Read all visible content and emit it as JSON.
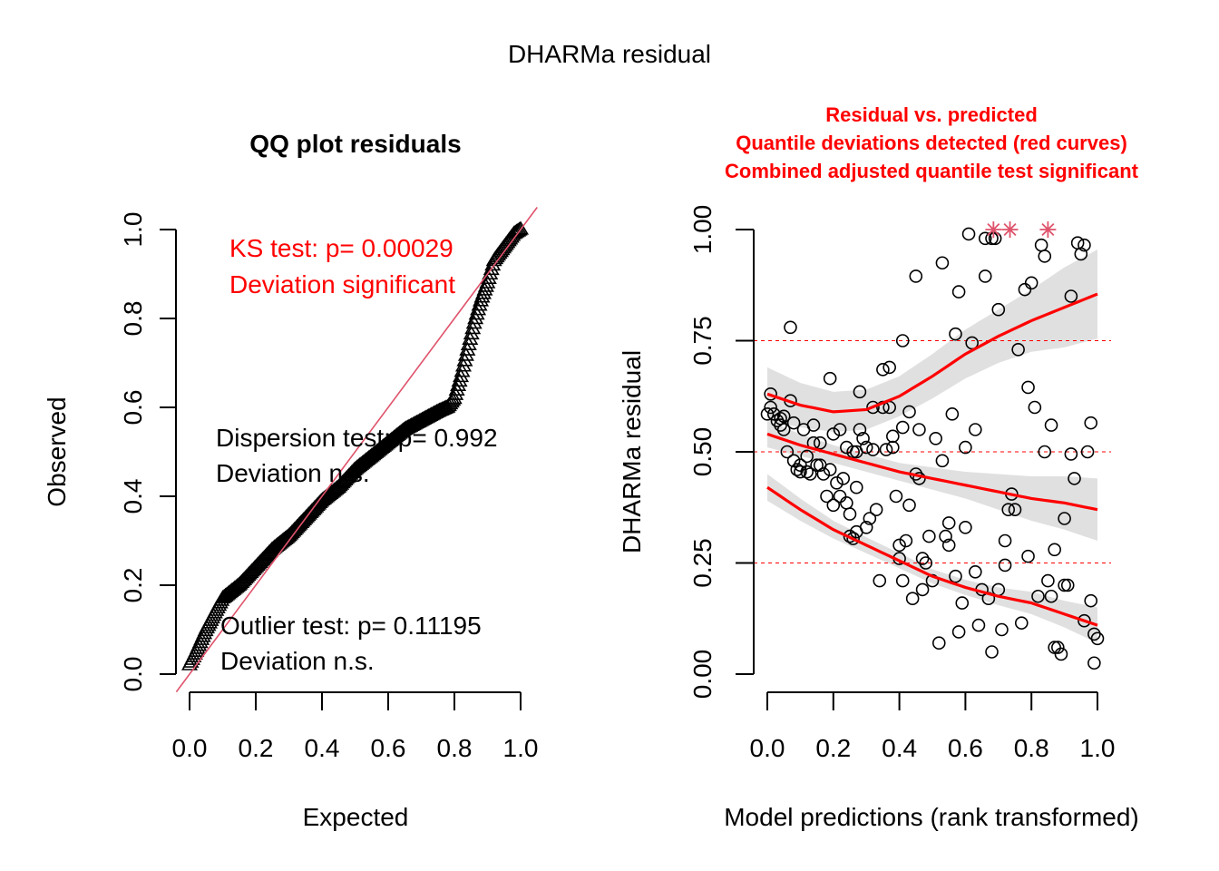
{
  "title": "DHARMa residual",
  "colors": {
    "text": "#000000",
    "red": "#ff0000",
    "diag_line": "#df536b",
    "outlier_star": "#df536b",
    "band": "#e0e0e0"
  },
  "chart_data": [
    {
      "type": "scatter",
      "subtype": "qq",
      "title": "QQ plot residuals",
      "xlabel": "Expected",
      "ylabel": "Observed",
      "xlim": [
        0,
        1
      ],
      "ylim": [
        0,
        1
      ],
      "xticks": [
        "0.0",
        "0.2",
        "0.4",
        "0.6",
        "0.8",
        "1.0"
      ],
      "yticks": [
        "0.0",
        "0.2",
        "0.4",
        "0.6",
        "0.8",
        "1.0"
      ],
      "marker": "triangle-open",
      "reference_line": {
        "slope": 1,
        "intercept": 0
      },
      "qq_curve": {
        "expected": [
          0.0,
          0.02,
          0.05,
          0.1,
          0.15,
          0.2,
          0.25,
          0.3,
          0.35,
          0.4,
          0.45,
          0.5,
          0.55,
          0.6,
          0.65,
          0.7,
          0.75,
          0.78,
          0.8,
          0.82,
          0.84,
          0.86,
          0.88,
          0.9,
          0.92,
          0.95,
          0.98,
          1.0
        ],
        "observed": [
          0.02,
          0.05,
          0.1,
          0.17,
          0.2,
          0.24,
          0.28,
          0.31,
          0.35,
          0.39,
          0.42,
          0.46,
          0.49,
          0.52,
          0.55,
          0.57,
          0.59,
          0.6,
          0.62,
          0.67,
          0.73,
          0.79,
          0.84,
          0.88,
          0.93,
          0.96,
          0.99,
          1.0
        ],
        "n_points": 250
      },
      "annotations": [
        {
          "lines": [
            "KS test: p= 0.00029",
            "Deviation  significant"
          ],
          "color": "#ff0000"
        },
        {
          "lines": [
            "Dispersion test: p= 0.992",
            "Deviation  n.s."
          ],
          "color": "#000000"
        },
        {
          "lines": [
            "Outlier test: p= 0.11195",
            "Deviation  n.s."
          ],
          "color": "#000000"
        }
      ]
    },
    {
      "type": "scatter",
      "subtype": "residual-vs-predicted",
      "title_lines": [
        "Residual vs. predicted",
        "Quantile deviations detected (red curves)",
        "Combined adjusted quantile test significant"
      ],
      "xlabel": "Model predictions (rank transformed)",
      "ylabel": "DHARMa residual",
      "xlim": [
        0,
        1
      ],
      "ylim": [
        0,
        1
      ],
      "xticks": [
        "0.0",
        "0.2",
        "0.4",
        "0.6",
        "0.8",
        "1.0"
      ],
      "yticks": [
        "0.00",
        "0.25",
        "0.50",
        "0.75",
        "1.00"
      ],
      "hlines": [
        0.25,
        0.5,
        0.75
      ],
      "marker": "circle-open",
      "points": [
        [
          0.0,
          0.585
        ],
        [
          0.01,
          0.6
        ],
        [
          0.01,
          0.63
        ],
        [
          0.02,
          0.585
        ],
        [
          0.03,
          0.57
        ],
        [
          0.04,
          0.575
        ],
        [
          0.04,
          0.56
        ],
        [
          0.05,
          0.58
        ],
        [
          0.05,
          0.55
        ],
        [
          0.06,
          0.5
        ],
        [
          0.07,
          0.78
        ],
        [
          0.07,
          0.615
        ],
        [
          0.08,
          0.565
        ],
        [
          0.08,
          0.48
        ],
        [
          0.09,
          0.46
        ],
        [
          0.1,
          0.455
        ],
        [
          0.1,
          0.47
        ],
        [
          0.11,
          0.55
        ],
        [
          0.12,
          0.49
        ],
        [
          0.13,
          0.45
        ],
        [
          0.14,
          0.56
        ],
        [
          0.15,
          0.47
        ],
        [
          0.16,
          0.47
        ],
        [
          0.16,
          0.52
        ],
        [
          0.17,
          0.45
        ],
        [
          0.18,
          0.4
        ],
        [
          0.19,
          0.46
        ],
        [
          0.19,
          0.665
        ],
        [
          0.2,
          0.38
        ],
        [
          0.2,
          0.54
        ],
        [
          0.21,
          0.43
        ],
        [
          0.22,
          0.55
        ],
        [
          0.23,
          0.44
        ],
        [
          0.24,
          0.51
        ],
        [
          0.24,
          0.385
        ],
        [
          0.25,
          0.31
        ],
        [
          0.25,
          0.36
        ],
        [
          0.26,
          0.5
        ],
        [
          0.27,
          0.5
        ],
        [
          0.27,
          0.42
        ],
        [
          0.27,
          0.32
        ],
        [
          0.28,
          0.635
        ],
        [
          0.28,
          0.55
        ],
        [
          0.29,
          0.53
        ],
        [
          0.3,
          0.51
        ],
        [
          0.3,
          0.33
        ],
        [
          0.31,
          0.35
        ],
        [
          0.32,
          0.505
        ],
        [
          0.32,
          0.6
        ],
        [
          0.33,
          0.37
        ],
        [
          0.34,
          0.21
        ],
        [
          0.35,
          0.6
        ],
        [
          0.35,
          0.685
        ],
        [
          0.36,
          0.505
        ],
        [
          0.37,
          0.6
        ],
        [
          0.37,
          0.69
        ],
        [
          0.38,
          0.535
        ],
        [
          0.38,
          0.51
        ],
        [
          0.39,
          0.4
        ],
        [
          0.4,
          0.26
        ],
        [
          0.4,
          0.29
        ],
        [
          0.41,
          0.21
        ],
        [
          0.41,
          0.555
        ],
        [
          0.41,
          0.75
        ],
        [
          0.42,
          0.3
        ],
        [
          0.43,
          0.38
        ],
        [
          0.43,
          0.59
        ],
        [
          0.44,
          0.17
        ],
        [
          0.45,
          0.45
        ],
        [
          0.45,
          0.895
        ],
        [
          0.46,
          0.44
        ],
        [
          0.47,
          0.26
        ],
        [
          0.47,
          0.19
        ],
        [
          0.48,
          0.25
        ],
        [
          0.49,
          0.31
        ],
        [
          0.5,
          0.21
        ],
        [
          0.51,
          0.53
        ],
        [
          0.52,
          0.07
        ],
        [
          0.53,
          0.925
        ],
        [
          0.54,
          0.31
        ],
        [
          0.55,
          0.34
        ],
        [
          0.55,
          0.29
        ],
        [
          0.56,
          0.585
        ],
        [
          0.57,
          0.765
        ],
        [
          0.57,
          0.22
        ],
        [
          0.58,
          0.86
        ],
        [
          0.58,
          0.095
        ],
        [
          0.59,
          0.16
        ],
        [
          0.6,
          0.33
        ],
        [
          0.6,
          0.51
        ],
        [
          0.61,
          0.99
        ],
        [
          0.62,
          0.745
        ],
        [
          0.63,
          0.55
        ],
        [
          0.63,
          0.23
        ],
        [
          0.64,
          0.11
        ],
        [
          0.65,
          0.19
        ],
        [
          0.66,
          0.98
        ],
        [
          0.66,
          0.895
        ],
        [
          0.67,
          0.17
        ],
        [
          0.68,
          0.98
        ],
        [
          0.68,
          0.05
        ],
        [
          0.69,
          0.98
        ],
        [
          0.7,
          0.19
        ],
        [
          0.7,
          0.82
        ],
        [
          0.71,
          0.1
        ],
        [
          0.72,
          0.3
        ],
        [
          0.72,
          0.245
        ],
        [
          0.73,
          0.37
        ],
        [
          0.74,
          0.405
        ],
        [
          0.75,
          0.37
        ],
        [
          0.76,
          0.73
        ],
        [
          0.77,
          0.115
        ],
        [
          0.78,
          0.865
        ],
        [
          0.79,
          0.645
        ],
        [
          0.79,
          0.265
        ],
        [
          0.8,
          0.88
        ],
        [
          0.81,
          0.6
        ],
        [
          0.82,
          0.175
        ],
        [
          0.83,
          0.965
        ],
        [
          0.84,
          0.94
        ],
        [
          0.84,
          0.5
        ],
        [
          0.85,
          0.21
        ],
        [
          0.86,
          0.175
        ],
        [
          0.86,
          0.56
        ],
        [
          0.87,
          0.06
        ],
        [
          0.87,
          0.28
        ],
        [
          0.88,
          0.06
        ],
        [
          0.89,
          0.045
        ],
        [
          0.9,
          0.35
        ],
        [
          0.91,
          0.2
        ],
        [
          0.92,
          0.495
        ],
        [
          0.92,
          0.85
        ],
        [
          0.93,
          0.44
        ],
        [
          0.94,
          0.97
        ],
        [
          0.95,
          0.945
        ],
        [
          0.96,
          0.965
        ],
        [
          0.97,
          0.5
        ],
        [
          0.98,
          0.165
        ],
        [
          0.98,
          0.565
        ],
        [
          0.99,
          0.025
        ],
        [
          0.99,
          0.09
        ],
        [
          1.0,
          0.08
        ],
        [
          0.96,
          0.12
        ],
        [
          0.9,
          0.2
        ],
        [
          0.12,
          0.455
        ],
        [
          0.14,
          0.52
        ],
        [
          0.22,
          0.4
        ],
        [
          0.26,
          0.305
        ],
        [
          0.46,
          0.55
        ],
        [
          0.53,
          0.48
        ]
      ],
      "outliers": [
        [
          0.685,
          1.0
        ],
        [
          0.735,
          1.0
        ],
        [
          0.85,
          1.0
        ]
      ],
      "quantile_curves": [
        {
          "quantile": 0.25,
          "x": [
            0.0,
            0.1,
            0.2,
            0.3,
            0.4,
            0.5,
            0.6,
            0.7,
            0.8,
            0.9,
            1.0
          ],
          "y": [
            0.42,
            0.37,
            0.325,
            0.29,
            0.255,
            0.22,
            0.195,
            0.175,
            0.16,
            0.135,
            0.11
          ],
          "band_halfwidth": [
            0.03,
            0.025,
            0.02,
            0.018,
            0.017,
            0.016,
            0.017,
            0.02,
            0.025,
            0.03,
            0.04
          ]
        },
        {
          "quantile": 0.5,
          "x": [
            0.0,
            0.1,
            0.2,
            0.3,
            0.4,
            0.5,
            0.6,
            0.7,
            0.8,
            0.9,
            1.0
          ],
          "y": [
            0.54,
            0.515,
            0.495,
            0.475,
            0.455,
            0.44,
            0.425,
            0.41,
            0.395,
            0.385,
            0.37
          ],
          "band_halfwidth": [
            0.03,
            0.025,
            0.02,
            0.02,
            0.02,
            0.025,
            0.03,
            0.04,
            0.05,
            0.06,
            0.07
          ]
        },
        {
          "quantile": 0.75,
          "x": [
            0.0,
            0.1,
            0.2,
            0.3,
            0.4,
            0.5,
            0.6,
            0.7,
            0.8,
            0.9,
            1.0
          ],
          "y": [
            0.63,
            0.605,
            0.59,
            0.595,
            0.625,
            0.67,
            0.72,
            0.76,
            0.795,
            0.825,
            0.855
          ],
          "band_halfwidth": [
            0.06,
            0.05,
            0.045,
            0.045,
            0.045,
            0.05,
            0.055,
            0.06,
            0.07,
            0.09,
            0.1
          ]
        }
      ]
    }
  ]
}
